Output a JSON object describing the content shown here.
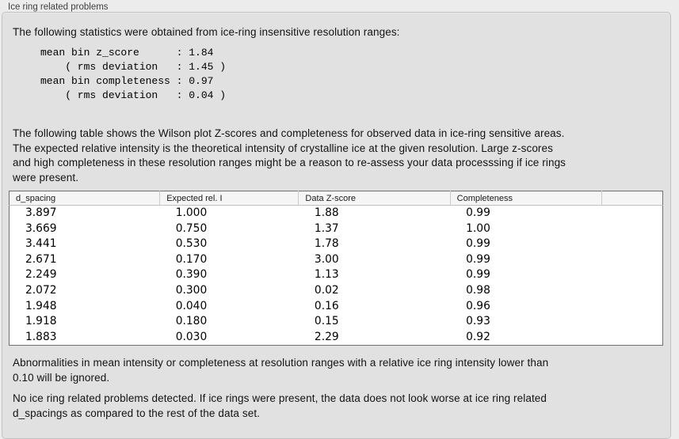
{
  "panel_title": "Ice ring related problems",
  "intro": "The following statistics were obtained from ice-ring insensitive resolution ranges:",
  "stats_block": [
    "mean bin z_score      : 1.84",
    "    ( rms deviation   : 1.45 )",
    "mean bin completeness : 0.97",
    "    ( rms deviation   : 0.04 )"
  ],
  "table_description": [
    "The following table shows the Wilson plot Z-scores and completeness for observed data in ice-ring sensitive areas.",
    "The expected relative intensity is the theoretical intensity of crystalline ice at the given resolution. Large z-scores",
    "and high completeness in these resolution ranges might be a reason to re-assess your data processsing if ice rings",
    "were present."
  ],
  "table": {
    "columns": [
      "d_spacing",
      "Expected rel. I",
      "Data Z-score",
      "Completeness",
      ""
    ],
    "rows": [
      [
        "3.897",
        "1.000",
        "1.88",
        "0.99",
        ""
      ],
      [
        "3.669",
        "0.750",
        "1.37",
        "1.00",
        ""
      ],
      [
        "3.441",
        "0.530",
        "1.78",
        "0.99",
        ""
      ],
      [
        "2.671",
        "0.170",
        "3.00",
        "0.99",
        ""
      ],
      [
        "2.249",
        "0.390",
        "1.13",
        "0.99",
        ""
      ],
      [
        "2.072",
        "0.300",
        "0.02",
        "0.98",
        ""
      ],
      [
        "1.948",
        "0.040",
        "0.16",
        "0.96",
        ""
      ],
      [
        "1.918",
        "0.180",
        "0.15",
        "0.93",
        ""
      ],
      [
        "1.883",
        "0.030",
        "2.29",
        "0.92",
        ""
      ]
    ]
  },
  "note_ignore": [
    "Abnormalities in mean intensity or completeness at resolution ranges with a relative ice ring intensity lower than",
    "0.10 will be ignored."
  ],
  "conclusion": [
    "No ice ring related problems detected. If ice rings were present, the data does not look worse at ice ring related",
    "d_spacings as compared to the rest of the data set."
  ]
}
